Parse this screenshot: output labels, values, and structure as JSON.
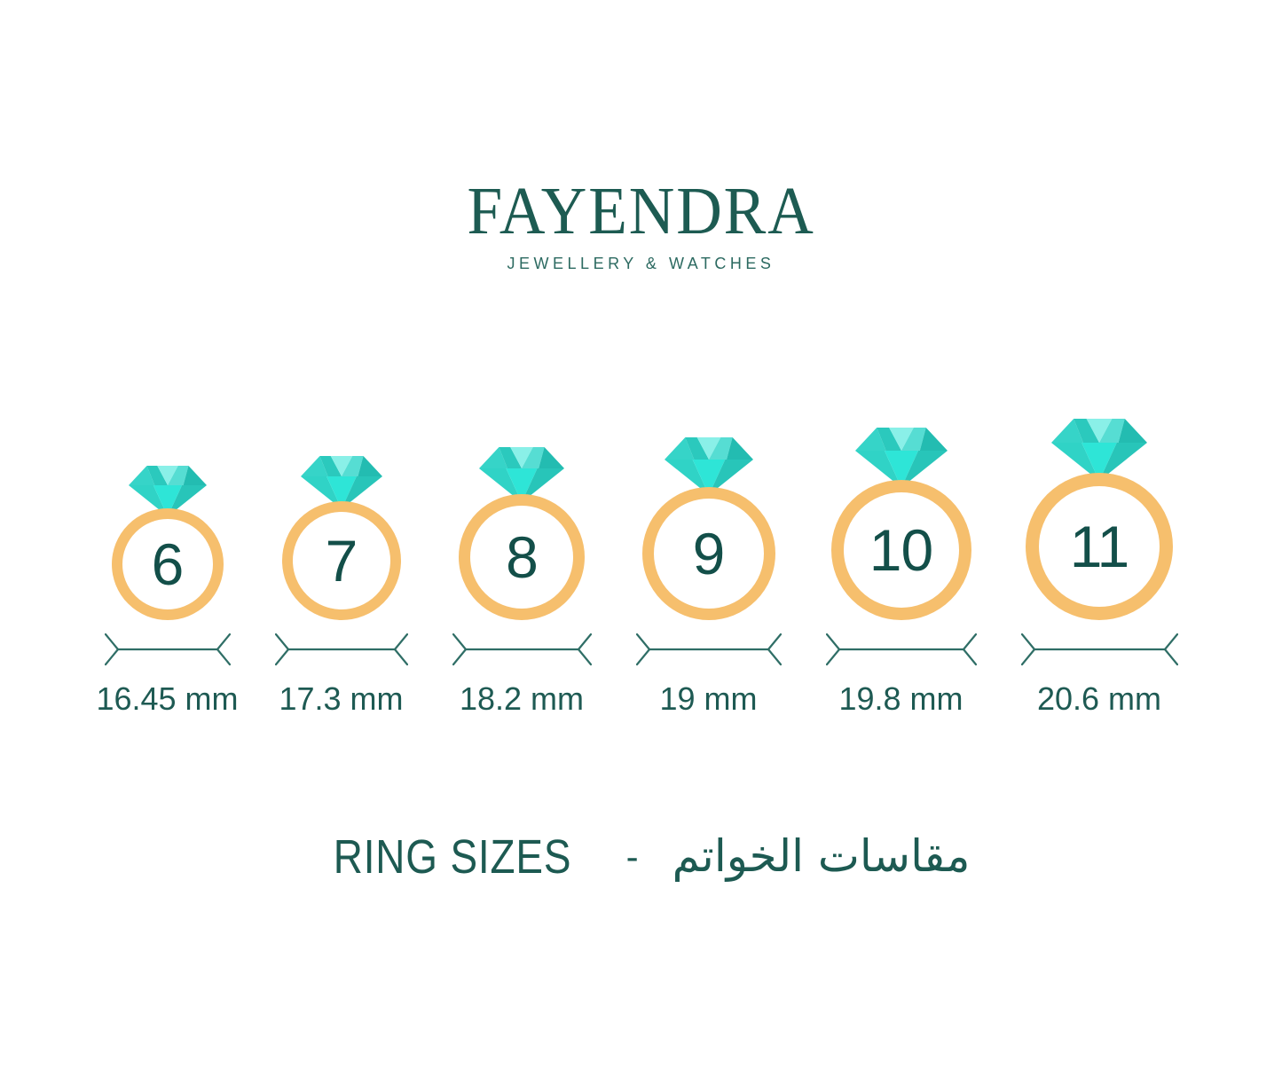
{
  "brand": {
    "name": "FAYENDRA",
    "tagline": "JEWELLERY & WATCHES"
  },
  "rings": [
    {
      "size": "6",
      "diameter": "16.45 mm"
    },
    {
      "size": "7",
      "diameter": "17.3 mm"
    },
    {
      "size": "8",
      "diameter": "18.2 mm"
    },
    {
      "size": "9",
      "diameter": "19 mm"
    },
    {
      "size": "10",
      "diameter": "19.8 mm"
    },
    {
      "size": "11",
      "diameter": "20.6 mm"
    }
  ],
  "footer": {
    "title_en": "RING SIZES",
    "separator": "-",
    "title_ar": "مقاسات الخواتم"
  },
  "icons": {
    "diamond": "diamond-icon",
    "measure_arrow": "measure-arrow-icon"
  },
  "colors": {
    "text_teal": "#1d5a52",
    "number_teal": "#134f49",
    "band_gold": "#f6bf6d",
    "diamond_mid": "#30d3c6",
    "diamond_light": "#8af0e8",
    "diamond_dark": "#23bcb1",
    "diamond_bright": "#2ee5d7",
    "background": "#ffffff"
  }
}
